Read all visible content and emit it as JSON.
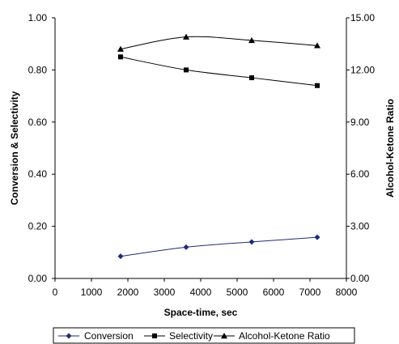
{
  "chart_data": {
    "type": "line",
    "title": "",
    "xlabel": "Space-time, sec",
    "ylabel": "Conversion & Selectivity",
    "y2label": "Alcohol-Ketone Ratio",
    "xlim": [
      0,
      8000
    ],
    "ylim": [
      0,
      1.0
    ],
    "y2lim": [
      0,
      15.0
    ],
    "xticks": [
      "0",
      "1000",
      "2000",
      "3000",
      "4000",
      "5000",
      "6000",
      "7000",
      "8000"
    ],
    "yticks": [
      "0.00",
      "0.20",
      "0.40",
      "0.60",
      "0.80",
      "1.00"
    ],
    "y2ticks": [
      "0.00",
      "3.00",
      "6.00",
      "9.00",
      "12.00",
      "15.00"
    ],
    "grid": false,
    "legend_position": "bottom",
    "series": [
      {
        "name": "Conversion",
        "axis": "left",
        "marker": "diamond",
        "color": "#1f2a7a",
        "x": [
          1800,
          3600,
          5400,
          7200
        ],
        "y": [
          0.085,
          0.12,
          0.14,
          0.158
        ]
      },
      {
        "name": "Selectivity",
        "axis": "left",
        "marker": "square",
        "color": "#000000",
        "x": [
          1800,
          3600,
          5400,
          7200
        ],
        "y": [
          0.85,
          0.8,
          0.77,
          0.74
        ]
      },
      {
        "name": "Alcohol-Ketone Ratio",
        "axis": "right",
        "marker": "triangle",
        "color": "#000000",
        "x": [
          1800,
          3600,
          5400,
          7200
        ],
        "y": [
          13.2,
          13.9,
          13.7,
          13.4
        ]
      }
    ]
  }
}
